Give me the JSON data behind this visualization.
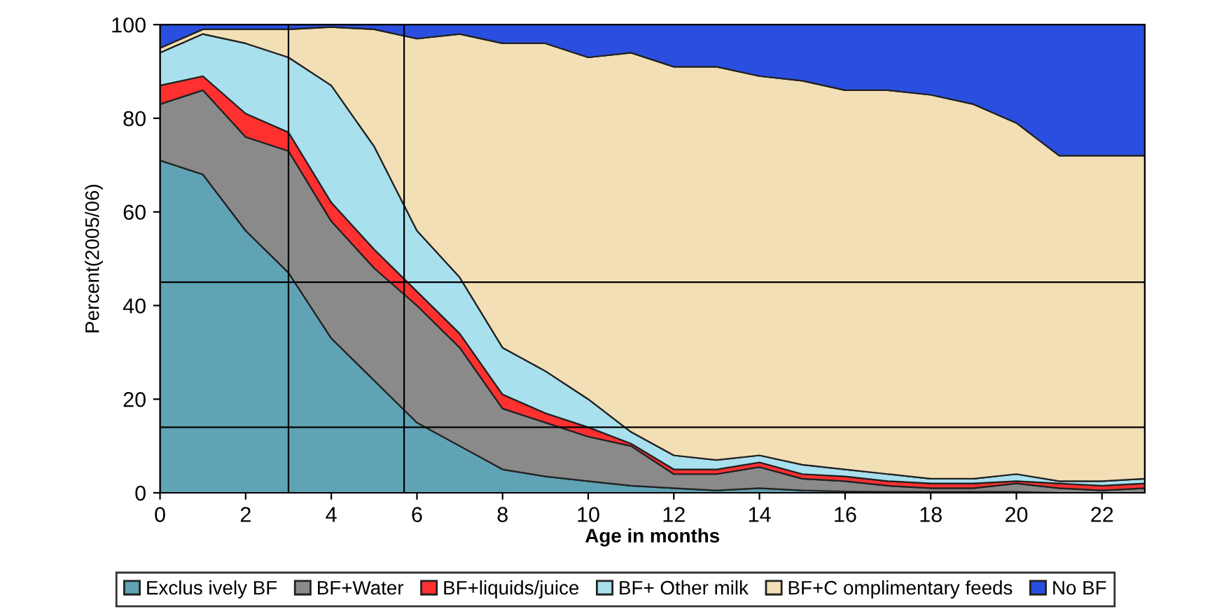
{
  "chart_data": {
    "type": "area",
    "stacked": true,
    "xlabel": "Age in months",
    "ylabel": "Percent(2005/06)",
    "x": [
      0,
      1,
      2,
      3,
      4,
      5,
      6,
      7,
      8,
      9,
      10,
      11,
      12,
      13,
      14,
      15,
      16,
      17,
      18,
      19,
      20,
      21,
      22,
      23
    ],
    "xlim": [
      0,
      23
    ],
    "xticks": [
      0,
      2,
      4,
      6,
      8,
      10,
      12,
      14,
      16,
      18,
      20,
      22
    ],
    "ylim": [
      0,
      100
    ],
    "yticks": [
      0,
      20,
      40,
      60,
      80,
      100
    ],
    "grid": false,
    "legend": "bottom",
    "series": [
      {
        "name": "Exclus ively BF",
        "color": "#5fa3b5",
        "values": [
          71,
          68,
          56,
          47,
          33,
          24,
          15,
          10,
          5,
          3.5,
          2.5,
          1.5,
          1,
          0.5,
          1,
          0.5,
          0.3,
          0.2,
          0.2,
          0.2,
          0.2,
          0,
          0,
          0
        ]
      },
      {
        "name": "BF+Water",
        "color": "#8a8a8a",
        "values": [
          12,
          18,
          20,
          26,
          25,
          24,
          25,
          21,
          13,
          11.5,
          9.5,
          8.5,
          3,
          3.5,
          4.5,
          2.5,
          2.2,
          1.3,
          0.8,
          0.8,
          1.8,
          1,
          0.5,
          1
        ]
      },
      {
        "name": "BF+liquids/juice",
        "color": "#ff3030",
        "values": [
          4,
          3,
          5,
          4,
          4,
          4,
          3,
          3,
          3,
          2,
          2,
          0.5,
          1,
          1,
          1,
          1,
          1,
          1,
          1,
          1,
          0.5,
          1,
          1,
          1
        ]
      },
      {
        "name": "BF+ Other milk",
        "color": "#a8e0ee",
        "values": [
          7,
          9,
          15,
          16,
          25,
          22,
          13,
          12,
          10,
          9,
          6,
          2.5,
          3,
          2,
          1.5,
          2,
          1.5,
          1.5,
          1,
          1,
          1.5,
          0.5,
          1,
          1
        ]
      },
      {
        "name": "BF+C omplimentary feeds",
        "color": "#f3dfb5",
        "values": [
          1,
          1,
          3,
          6,
          12.5,
          25,
          41,
          52,
          65,
          70,
          73,
          81,
          83,
          84,
          81,
          82,
          81,
          82,
          82,
          80,
          75,
          69.5,
          69.5,
          69
        ]
      },
      {
        "name": "No BF",
        "color": "#2a4fe0",
        "values": [
          5,
          1,
          1,
          1,
          0.5,
          1,
          3,
          2,
          4,
          4,
          7,
          6,
          9,
          9,
          11,
          12,
          14,
          14,
          15,
          17,
          21,
          28,
          28,
          28
        ]
      }
    ],
    "ref_lines": [
      {
        "axis": "x",
        "value": 3,
        "color": "#000000"
      },
      {
        "axis": "x",
        "value": 5.7,
        "color": "#000000"
      },
      {
        "axis": "y",
        "value": 45,
        "color": "#000000"
      },
      {
        "axis": "y",
        "value": 14,
        "color": "#000000"
      }
    ]
  }
}
